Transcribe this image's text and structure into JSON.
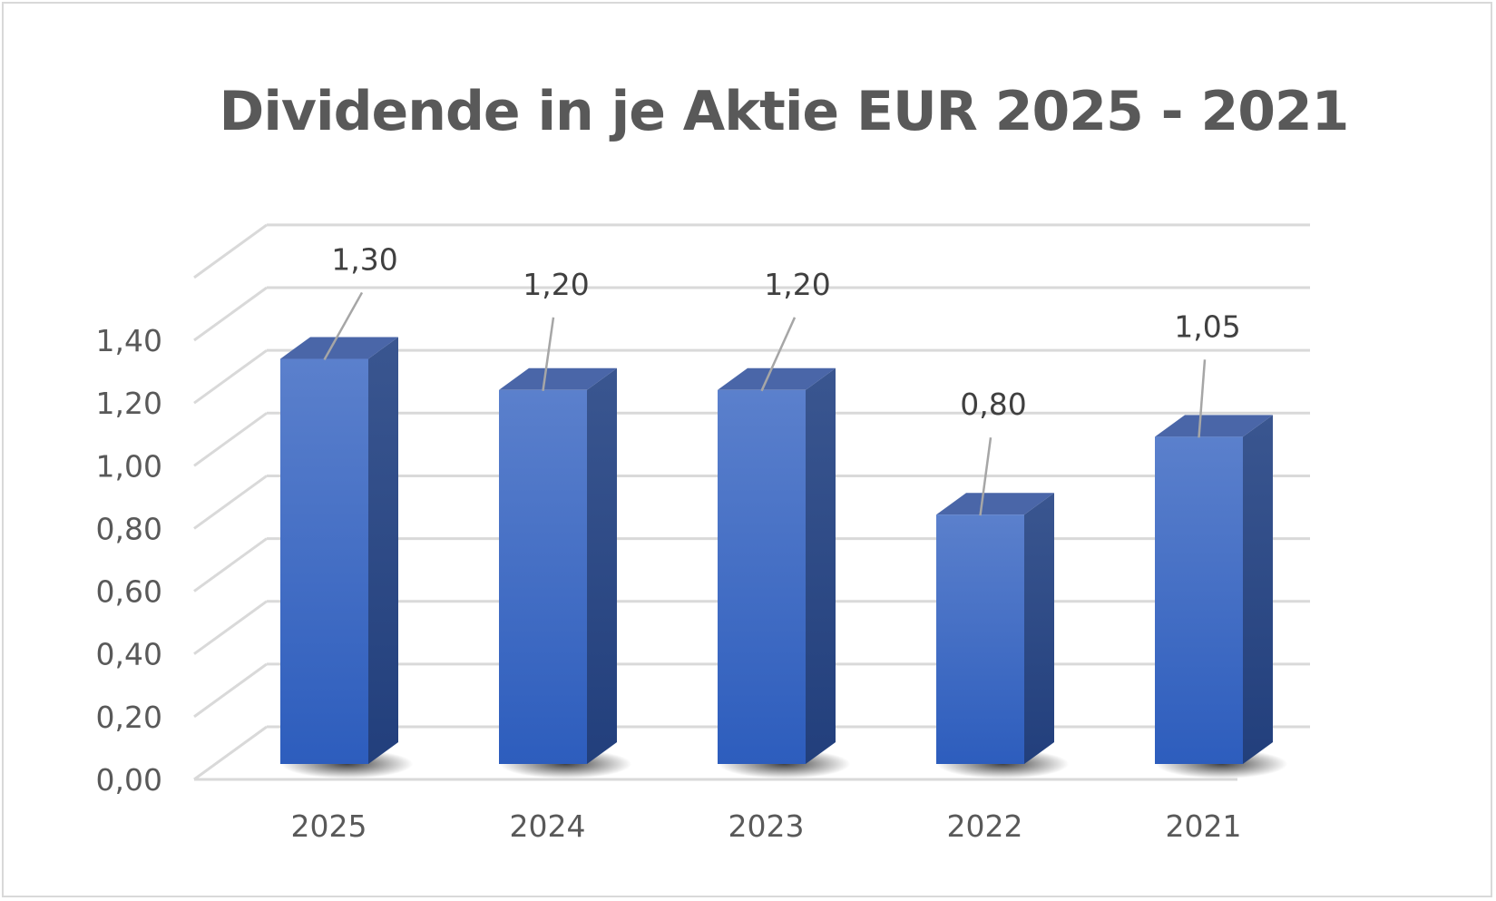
{
  "chart_data": {
    "type": "bar",
    "title": "Dividende in je Aktie EUR 2025 - 2021",
    "categories": [
      "2025",
      "2024",
      "2023",
      "2022",
      "2021"
    ],
    "values": [
      1.3,
      1.2,
      1.2,
      0.8,
      1.05
    ],
    "data_labels": [
      "1,30",
      "1,20",
      "1,20",
      "0,80",
      "1,05"
    ],
    "y_ticks": [
      "0,00",
      "0,20",
      "0,40",
      "0,60",
      "0,80",
      "1,00",
      "1,20",
      "1,40"
    ],
    "ylim": [
      0,
      1.4
    ],
    "xlabel": "",
    "ylabel": "",
    "grid": true,
    "style": "3d-column",
    "colors": {
      "bar_front_top": "#5b80cc",
      "bar_front_bottom": "#2f5fbf",
      "bar_side": "#2a4a8a",
      "bar_top": "#4a66a8",
      "grid": "#d9d9d9",
      "text": "#595959"
    }
  }
}
